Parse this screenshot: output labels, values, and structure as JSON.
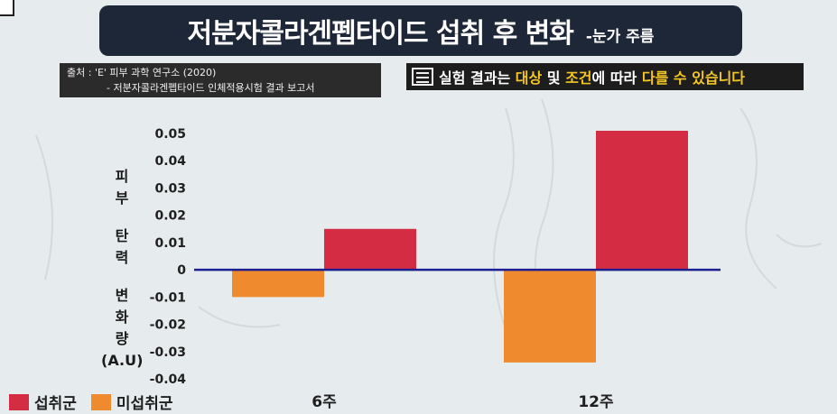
{
  "title": {
    "main": "저분자콜라겐펩타이드 섭취 후 변화",
    "sub": "-눈가 주름"
  },
  "source": {
    "line1": "출처 : 'E' 피부 과학 연구소 (2020)",
    "line2": "- 저분자콜라겐펩타이드 인체적용시험 결과 보고서"
  },
  "note": {
    "parts": [
      {
        "text": "실험 결과는 ",
        "color": "white"
      },
      {
        "text": "대상",
        "color": "yellow"
      },
      {
        "text": " 및 ",
        "color": "white"
      },
      {
        "text": "조건",
        "color": "yellow"
      },
      {
        "text": "에 따라 ",
        "color": "white"
      },
      {
        "text": "다를 수 있습니다",
        "color": "yellow"
      }
    ]
  },
  "ylabel_lines": [
    "피",
    "부",
    "",
    "탄",
    "력",
    "",
    "변",
    "화",
    "량",
    "(A.U)"
  ],
  "colors": {
    "intake": "#d42c43",
    "non_intake": "#ef8a2e",
    "axis": "#1b1f8f",
    "title_bg": "#1e2738",
    "note_yellow": "#f3c623"
  },
  "chart_data": {
    "type": "bar",
    "categories": [
      "6주",
      "12주"
    ],
    "series": [
      {
        "name": "미섭취군",
        "values": [
          -0.01,
          -0.034
        ]
      },
      {
        "name": "섭취군",
        "values": [
          0.015,
          0.051
        ]
      }
    ],
    "ylabel": "피부 탄력 변화량 (A.U)",
    "ylim": [
      -0.04,
      0.05
    ],
    "yticks": [
      -0.04,
      -0.03,
      -0.02,
      -0.01,
      0,
      0.01,
      0.02,
      0.03,
      0.04,
      0.05
    ],
    "ytick_labels": [
      "-0.04",
      "-0.03",
      "-0.02",
      "-0.01",
      "0",
      "0.01",
      "0.02",
      "0.03",
      "0.04",
      "0.05"
    ],
    "grid": false,
    "legend_position": "bottom-left"
  },
  "legend": [
    {
      "label": "섭취군",
      "color": "#d42c43"
    },
    {
      "label": "미섭취군",
      "color": "#ef8a2e"
    }
  ]
}
